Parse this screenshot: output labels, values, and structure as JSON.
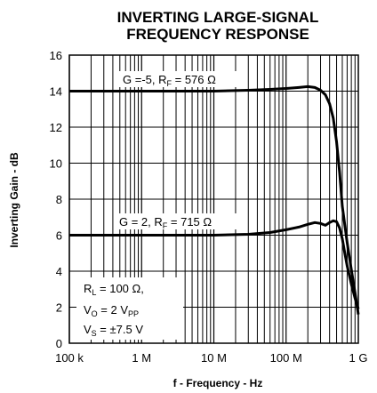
{
  "chart_data": {
    "type": "line",
    "title_line1": "INVERTING LARGE-SIGNAL",
    "title_line2": "FREQUENCY RESPONSE",
    "xlabel": "f - Frequency - Hz",
    "ylabel": "Inverting Gain - dB",
    "x_scale": "log",
    "xlim": [
      100000,
      1000000000
    ],
    "ylim": [
      0,
      16
    ],
    "grid": true,
    "x_ticks": [
      {
        "value": 100000,
        "label": "100 k"
      },
      {
        "value": 1000000,
        "label": "1 M"
      },
      {
        "value": 10000000,
        "label": "10 M"
      },
      {
        "value": 100000000,
        "label": "100 M"
      },
      {
        "value": 1000000000,
        "label": "1 G"
      }
    ],
    "y_ticks": [
      {
        "value": 0,
        "label": "0"
      },
      {
        "value": 2,
        "label": "2"
      },
      {
        "value": 4,
        "label": "4"
      },
      {
        "value": 6,
        "label": "6"
      },
      {
        "value": 8,
        "label": "8"
      },
      {
        "value": 10,
        "label": "10"
      },
      {
        "value": 12,
        "label": "12"
      },
      {
        "value": 14,
        "label": "14"
      },
      {
        "value": 16,
        "label": "16"
      }
    ],
    "series": [
      {
        "name": "G =-5, RF = 576 Ω",
        "label_main": "G =-5, R",
        "label_sub": "F",
        "label_tail": " = 576 Ω",
        "x": [
          100000,
          1000000,
          10000000,
          30000000,
          60000000,
          100000000,
          150000000,
          200000000,
          250000000,
          300000000,
          350000000,
          400000000,
          450000000,
          500000000,
          550000000,
          600000000,
          700000000,
          800000000,
          900000000,
          1000000000
        ],
        "y": [
          14.0,
          14.0,
          14.0,
          14.05,
          14.1,
          14.15,
          14.2,
          14.25,
          14.2,
          14.05,
          13.8,
          13.3,
          12.5,
          11.2,
          9.5,
          7.6,
          5.6,
          4.1,
          2.8,
          1.6
        ]
      },
      {
        "name": "G = 2, RF = 715 Ω",
        "label_main": "G = 2, R",
        "label_sub": "F",
        "label_tail": " = 715 Ω",
        "x": [
          100000,
          1000000,
          10000000,
          30000000,
          60000000,
          100000000,
          150000000,
          200000000,
          250000000,
          300000000,
          350000000,
          400000000,
          450000000,
          500000000,
          550000000,
          600000000,
          650000000,
          700000000,
          800000000,
          900000000,
          1000000000
        ],
        "y": [
          6.0,
          6.0,
          6.0,
          6.05,
          6.15,
          6.3,
          6.45,
          6.6,
          6.7,
          6.65,
          6.55,
          6.7,
          6.8,
          6.75,
          6.4,
          5.8,
          5.0,
          4.3,
          3.3,
          2.5,
          1.9
        ]
      }
    ],
    "annotation": {
      "line1_main": "R",
      "line1_sub": "L",
      "line1_tail": " = 100 Ω,",
      "line2_main": "V",
      "line2_sub": "O",
      "line2_tail": " = 2 V",
      "line2_sub2": "PP",
      "line3_main": "V",
      "line3_sub": "S",
      "line3_tail": " = ±7.5 V"
    }
  }
}
